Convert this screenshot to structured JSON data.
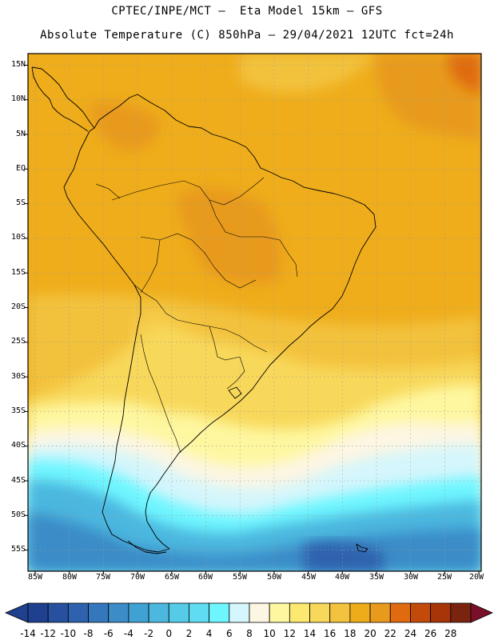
{
  "header": {
    "line1": "CPTEC/INPE/MCT –  Eta Model 15km – GFS",
    "line2": "Absolute Temperature (C) 850hPa – 29/04/2021 12UTC fct=24h"
  },
  "map": {
    "variable": "Absolute Temperature (C)",
    "level": "850hPa",
    "model": "Eta Model 15km",
    "boundary_forcing": "GFS",
    "init": "29/04/2021 12UTC",
    "forecast": "fct=24h",
    "latitude_labels": [
      "15N",
      "10N",
      "5N",
      "EQ",
      "5S",
      "10S",
      "15S",
      "20S",
      "25S",
      "30S",
      "35S",
      "40S",
      "45S",
      "50S",
      "55S"
    ],
    "longitude_labels": [
      "85W",
      "80W",
      "75W",
      "70W",
      "65W",
      "60W",
      "55W",
      "50W",
      "45W",
      "40W",
      "35W",
      "30W",
      "25W",
      "20W"
    ]
  },
  "colorbar": {
    "labels": [
      "-14",
      "-12",
      "-10",
      "-8",
      "-6",
      "-4",
      "-2",
      "0",
      "2",
      "4",
      "6",
      "8",
      "10",
      "12",
      "14",
      "16",
      "18",
      "20",
      "22",
      "24",
      "26",
      "28"
    ],
    "colors": [
      "#1f3f8f",
      "#27519f",
      "#2f62ae",
      "#3577bd",
      "#3b8cc7",
      "#40a2d2",
      "#4cb7df",
      "#55cbe8",
      "#5fdcf2",
      "#6ef6ff",
      "#d4f6fc",
      "#fdf6e3",
      "#fef7a0",
      "#fde870",
      "#f8d85a",
      "#f3c23e",
      "#eeac1a",
      "#e89a1c",
      "#df6a0f",
      "#c24a0a",
      "#a83508",
      "#7a2410"
    ]
  }
}
